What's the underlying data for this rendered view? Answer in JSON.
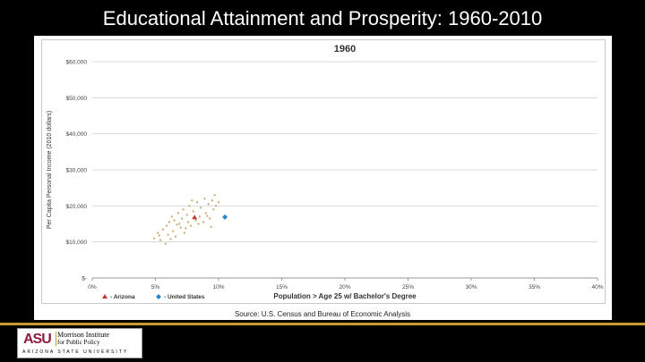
{
  "slide": {
    "title": "Educational Attainment and Prosperity: 1960-2010",
    "source": "Source: U.S. Census and Bureau of Economic Analysis"
  },
  "logo": {
    "mark": "ASU",
    "line1": "Morrison Institute",
    "line2": "for Public Policy",
    "university": "ARIZONA STATE UNIVERSITY"
  },
  "colors": {
    "arizona": "#c0392b",
    "us_states": "#c9a96e",
    "united_states": "#2e86c1",
    "gridline": "#d9d9d9",
    "accent": "#c99a2e"
  },
  "chart_data": {
    "type": "scatter",
    "title": "1960",
    "xlabel": "Population > Age 25 w/ Bachelor's Degree",
    "ylabel": "Per Capita Personal Income (2010 dollars)",
    "xlim": [
      0,
      40
    ],
    "ylim": [
      0,
      60000
    ],
    "x_ticks": [
      "0%",
      "5%",
      "10%",
      "15%",
      "20%",
      "25%",
      "30%",
      "35%",
      "40%"
    ],
    "y_ticks": [
      "$-",
      "$10,000",
      "$20,000",
      "$30,000",
      "$40,000",
      "$50,000",
      "$60,000"
    ],
    "grid": true,
    "legend_position": "bottom-left",
    "legend": [
      {
        "label": "- Arizona",
        "marker": "triangle"
      },
      {
        "label": "- United States",
        "marker": "diamond"
      }
    ],
    "series": [
      {
        "name": "- Arizona",
        "points": [
          [
            8.1,
            16800
          ]
        ]
      },
      {
        "name": "- United States",
        "points": [
          [
            10.5,
            16900
          ]
        ]
      },
      {
        "points": [
          [
            4.9,
            11000
          ],
          [
            5.2,
            12500
          ],
          [
            5.4,
            10500
          ],
          [
            5.6,
            13500
          ],
          [
            5.8,
            9500
          ],
          [
            5.9,
            14500
          ],
          [
            6.0,
            12000
          ],
          [
            6.1,
            15500
          ],
          [
            6.3,
            17000
          ],
          [
            6.4,
            13000
          ],
          [
            6.5,
            16000
          ],
          [
            6.6,
            11500
          ],
          [
            6.8,
            18000
          ],
          [
            6.9,
            15000
          ],
          [
            7.0,
            14000
          ],
          [
            7.1,
            16500
          ],
          [
            7.2,
            19000
          ],
          [
            7.3,
            12500
          ],
          [
            7.5,
            17500
          ],
          [
            7.6,
            15500
          ],
          [
            7.7,
            20000
          ],
          [
            7.8,
            14500
          ],
          [
            8.0,
            18500
          ],
          [
            8.2,
            16000
          ],
          [
            8.3,
            21000
          ],
          [
            8.5,
            17000
          ],
          [
            8.6,
            19500
          ],
          [
            8.8,
            15500
          ],
          [
            8.9,
            22000
          ],
          [
            9.0,
            18000
          ],
          [
            9.2,
            20500
          ],
          [
            9.3,
            16500
          ],
          [
            9.5,
            21500
          ],
          [
            9.6,
            19000
          ],
          [
            9.7,
            23000
          ],
          [
            9.8,
            20000
          ],
          [
            10.0,
            21000
          ],
          [
            6.7,
            14800
          ],
          [
            7.4,
            13800
          ],
          [
            8.4,
            15000
          ],
          [
            9.1,
            17200
          ],
          [
            5.3,
            11800
          ],
          [
            6.2,
            10800
          ],
          [
            7.9,
            21500
          ],
          [
            9.4,
            14200
          ]
        ]
      }
    ]
  }
}
